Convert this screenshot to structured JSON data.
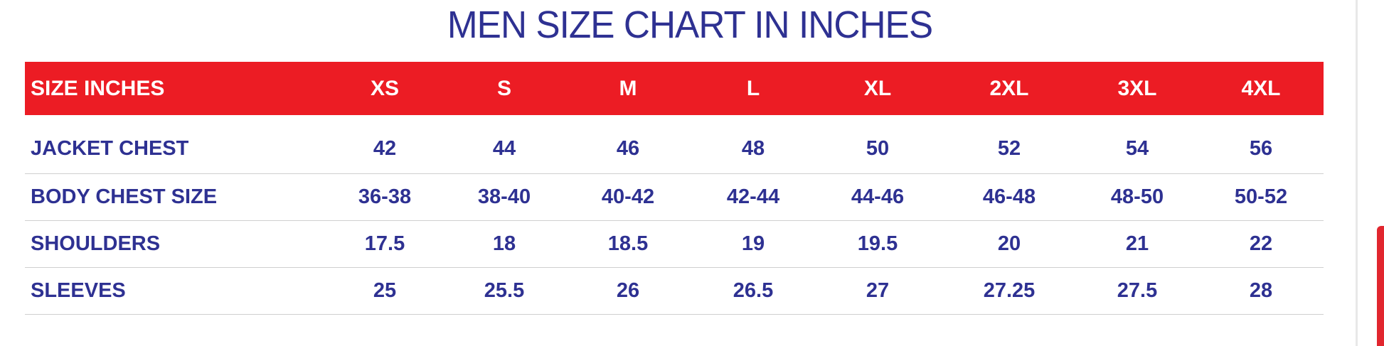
{
  "title": "MEN SIZE CHART IN INCHES",
  "table": {
    "header_label": "SIZE INCHES",
    "sizes": [
      "XS",
      "S",
      "M",
      "L",
      "XL",
      "2XL",
      "3XL",
      "4XL"
    ],
    "rows": [
      {
        "label": "JACKET CHEST",
        "values": [
          "42",
          "44",
          "46",
          "48",
          "50",
          "52",
          "54",
          "56"
        ]
      },
      {
        "label": "BODY CHEST SIZE",
        "values": [
          "36-38",
          "38-40",
          "40-42",
          "42-44",
          "44-46",
          "46-48",
          "48-50",
          "50-52"
        ]
      },
      {
        "label": "SHOULDERS",
        "values": [
          "17.5",
          "18",
          "18.5",
          "19",
          "19.5",
          "20",
          "21",
          "22"
        ]
      },
      {
        "label": "SLEEVES",
        "values": [
          "25",
          "25.5",
          "26",
          "26.5",
          "27",
          "27.25",
          "27.5",
          "28"
        ]
      }
    ]
  },
  "colors": {
    "header_background": "#ec1c24",
    "text": "#2e3192",
    "header_text": "#ffffff",
    "scrollbar_thumb": "#e1262e"
  }
}
